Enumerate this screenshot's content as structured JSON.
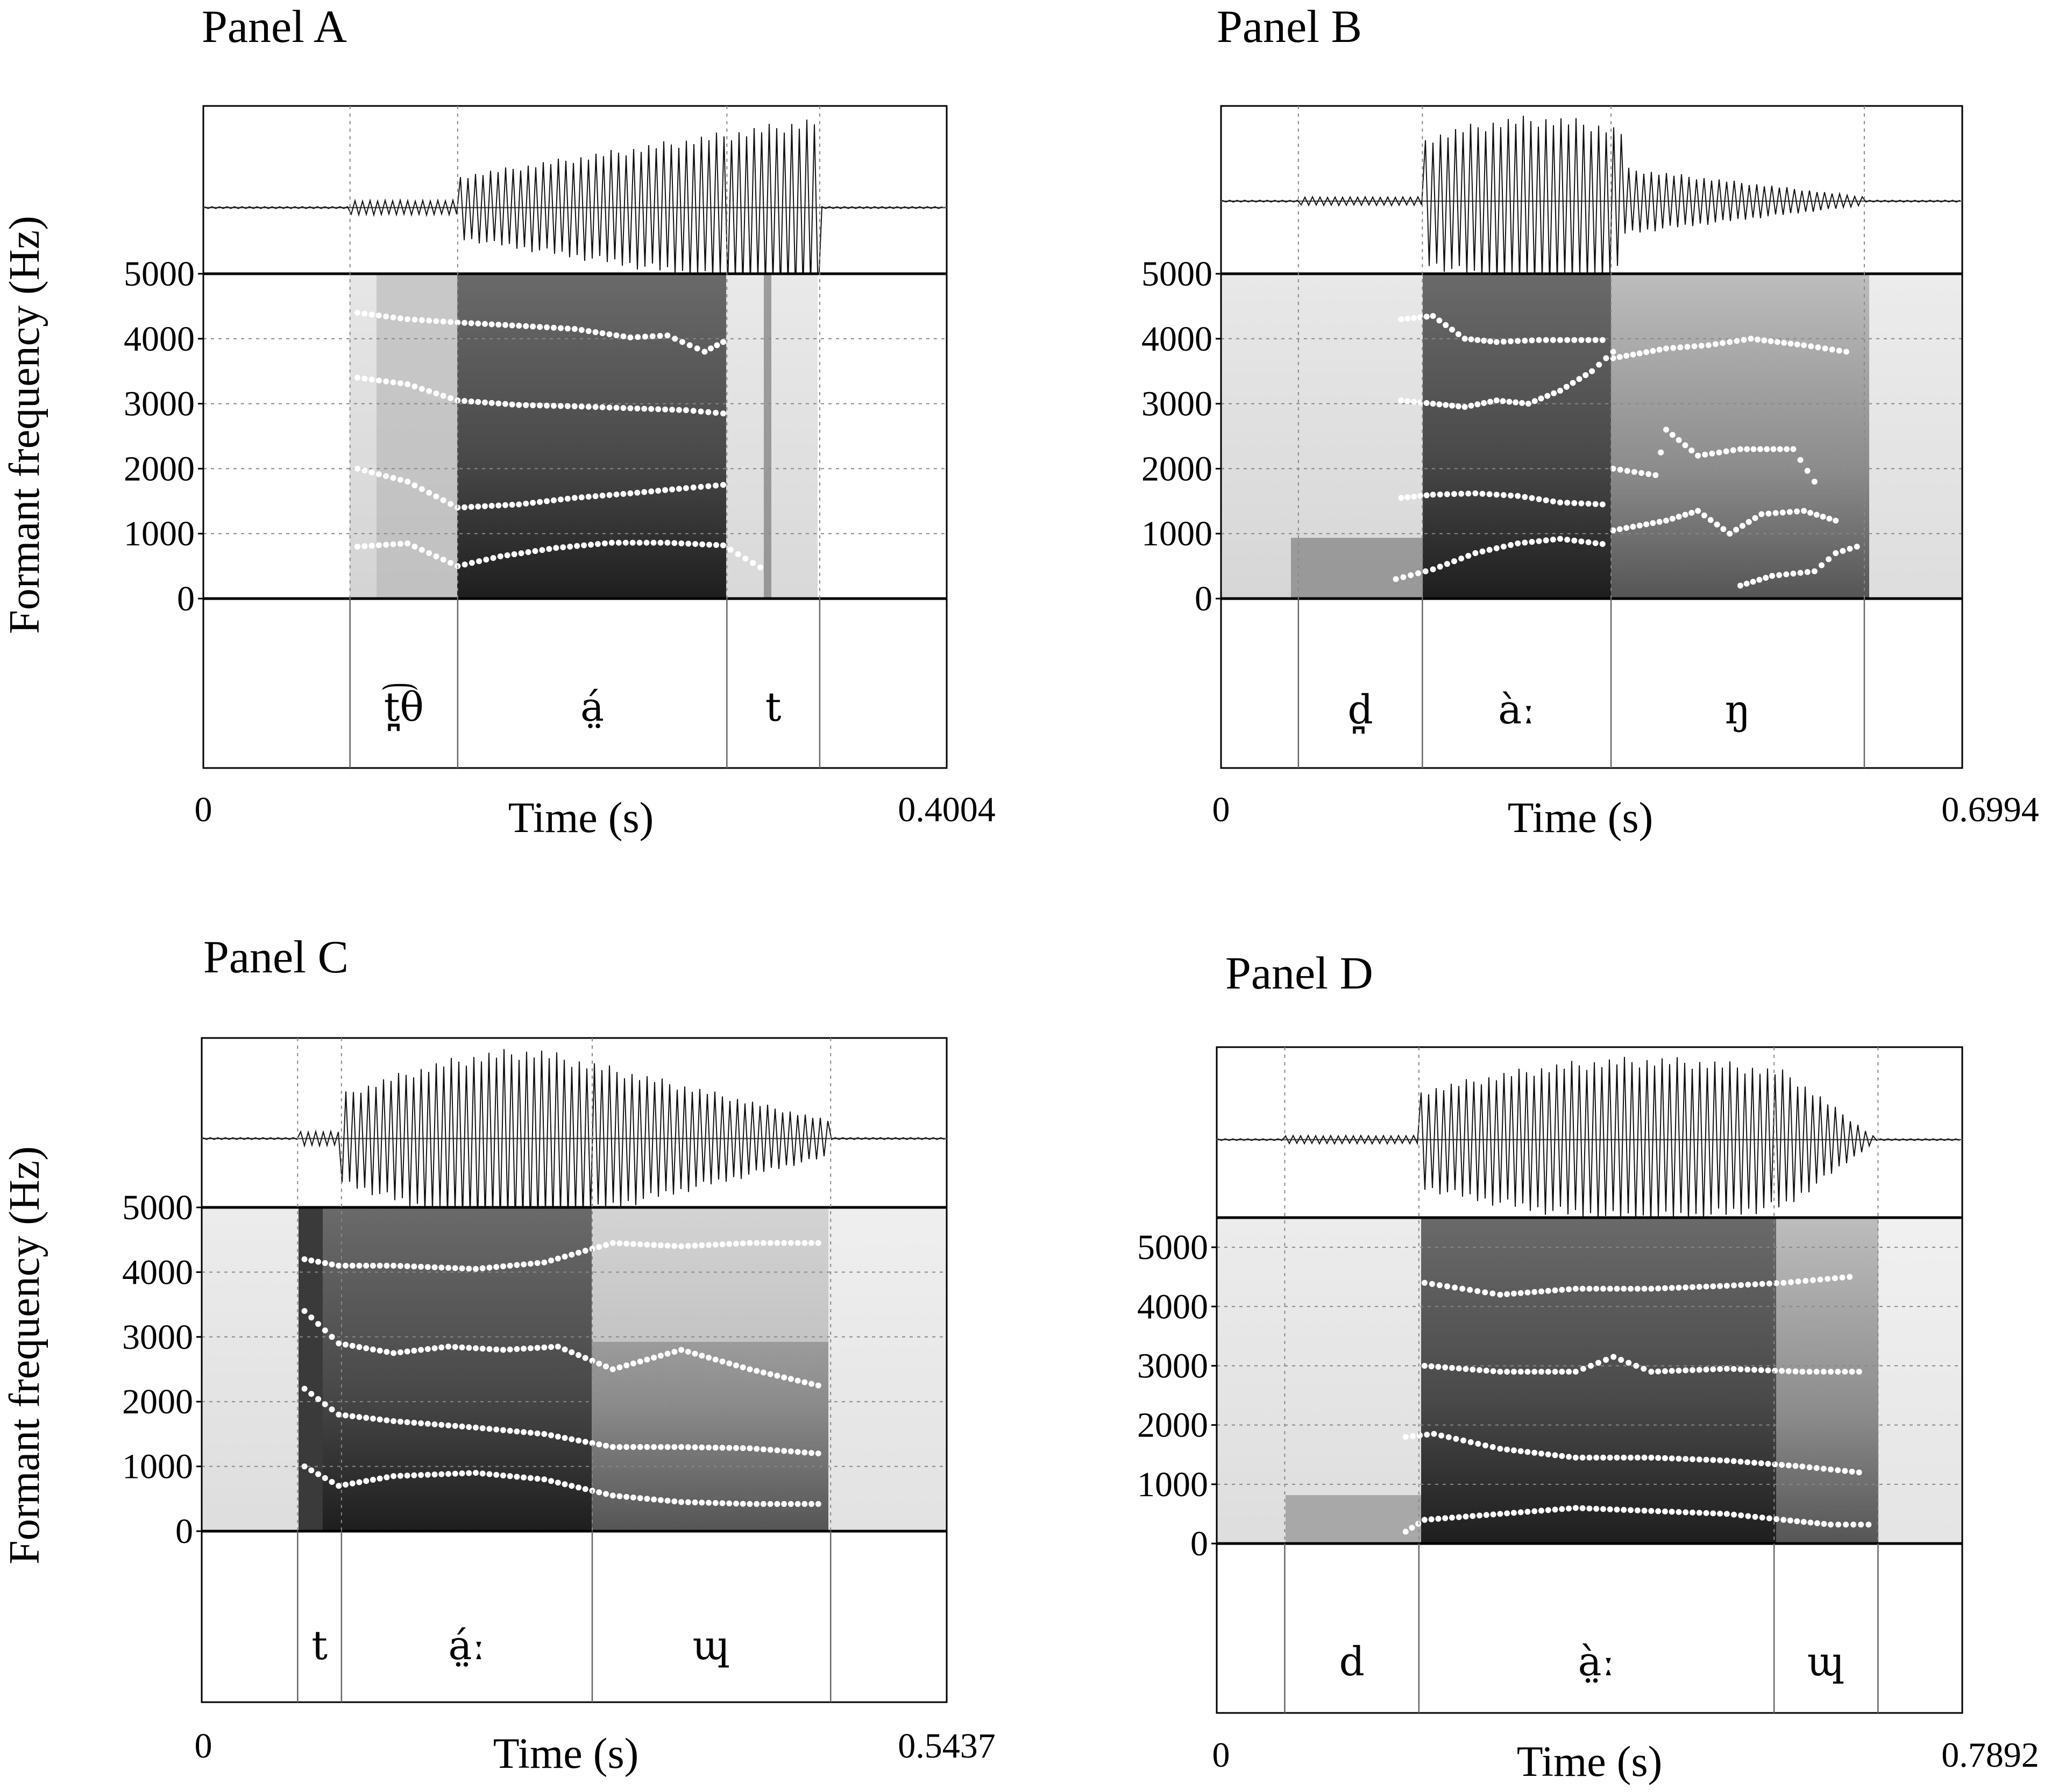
{
  "chart_data": [
    {
      "type": "spectrogram",
      "title": "Panel A",
      "ylabel": "Formant frequency (Hz)",
      "xlabel": "Time (s)",
      "xlim": [
        0,
        0.4004
      ],
      "xlim_labels": [
        "0",
        "0.4004"
      ],
      "ylim": [
        0,
        5000
      ],
      "y_ticks": [
        "0",
        "1000",
        "2000",
        "3000",
        "4000",
        "5000"
      ],
      "segments": [
        {
          "label": "t̪͡θ",
          "start": 0.079,
          "end": 0.137
        },
        {
          "label": "á̤",
          "start": 0.137,
          "end": 0.282
        },
        {
          "label": "t",
          "start": 0.282,
          "end": 0.332
        }
      ],
      "formants": [
        {
          "name": "F1",
          "points": [
            [
              0.083,
              800
            ],
            [
              0.11,
              850
            ],
            [
              0.137,
              500
            ],
            [
              0.16,
              650
            ],
            [
              0.19,
              780
            ],
            [
              0.22,
              860
            ],
            [
              0.25,
              860
            ],
            [
              0.28,
              820
            ],
            [
              0.3,
              480
            ]
          ]
        },
        {
          "name": "F2",
          "points": [
            [
              0.083,
              2000
            ],
            [
              0.11,
              1800
            ],
            [
              0.137,
              1400
            ],
            [
              0.17,
              1450
            ],
            [
              0.2,
              1550
            ],
            [
              0.23,
              1620
            ],
            [
              0.26,
              1700
            ],
            [
              0.28,
              1750
            ]
          ]
        },
        {
          "name": "F3",
          "points": [
            [
              0.083,
              3400
            ],
            [
              0.11,
              3300
            ],
            [
              0.137,
              3050
            ],
            [
              0.17,
              2980
            ],
            [
              0.2,
              2960
            ],
            [
              0.23,
              2930
            ],
            [
              0.26,
              2900
            ],
            [
              0.28,
              2850
            ]
          ]
        },
        {
          "name": "F4",
          "points": [
            [
              0.083,
              4400
            ],
            [
              0.11,
              4300
            ],
            [
              0.137,
              4250
            ],
            [
              0.17,
              4200
            ],
            [
              0.2,
              4150
            ],
            [
              0.23,
              4020
            ],
            [
              0.25,
              4050
            ],
            [
              0.27,
              3800
            ],
            [
              0.28,
              3950
            ]
          ]
        }
      ]
    },
    {
      "type": "spectrogram",
      "title": "Panel B",
      "ylabel": "",
      "xlabel": "Time (s)",
      "xlim": [
        0,
        0.6994
      ],
      "xlim_labels": [
        "0",
        "0.6994"
      ],
      "ylim": [
        0,
        5000
      ],
      "y_ticks": [
        "0",
        "1000",
        "2000",
        "3000",
        "4000",
        "5000"
      ],
      "segments": [
        {
          "label": "d̪",
          "start": 0.073,
          "end": 0.19
        },
        {
          "label": "àː",
          "start": 0.19,
          "end": 0.368
        },
        {
          "label": "ŋ",
          "start": 0.368,
          "end": 0.607
        }
      ],
      "formants": [
        {
          "name": "F1",
          "points": [
            [
              0.165,
              300
            ],
            [
              0.2,
              450
            ],
            [
              0.24,
              700
            ],
            [
              0.28,
              850
            ],
            [
              0.32,
              920
            ],
            [
              0.36,
              840
            ]
          ]
        },
        {
          "name": "F2",
          "points": [
            [
              0.17,
              1550
            ],
            [
              0.2,
              1600
            ],
            [
              0.24,
              1620
            ],
            [
              0.28,
              1580
            ],
            [
              0.32,
              1480
            ],
            [
              0.36,
              1450
            ]
          ]
        },
        {
          "name": "F3",
          "points": [
            [
              0.17,
              3050
            ],
            [
              0.2,
              3000
            ],
            [
              0.23,
              2950
            ],
            [
              0.26,
              3050
            ],
            [
              0.29,
              3000
            ],
            [
              0.32,
              3200
            ],
            [
              0.35,
              3500
            ],
            [
              0.37,
              3800
            ]
          ]
        },
        {
          "name": "F4",
          "points": [
            [
              0.17,
              4300
            ],
            [
              0.2,
              4350
            ],
            [
              0.23,
              4000
            ],
            [
              0.26,
              3950
            ],
            [
              0.3,
              3980
            ],
            [
              0.36,
              3980
            ]
          ]
        },
        {
          "name": "F1-nasal",
          "points": [
            [
              0.49,
              200
            ],
            [
              0.52,
              350
            ],
            [
              0.56,
              420
            ],
            [
              0.58,
              700
            ],
            [
              0.6,
              800
            ]
          ]
        },
        {
          "name": "F2-nasal",
          "points": [
            [
              0.37,
              1050
            ],
            [
              0.42,
              1200
            ],
            [
              0.45,
              1350
            ],
            [
              0.48,
              1000
            ],
            [
              0.51,
              1300
            ],
            [
              0.55,
              1350
            ],
            [
              0.58,
              1200
            ]
          ]
        },
        {
          "name": "F3-nasal",
          "points": [
            [
              0.37,
              2000
            ],
            [
              0.41,
              1900
            ],
            [
              0.42,
              2600
            ],
            [
              0.45,
              2200
            ],
            [
              0.49,
              2300
            ],
            [
              0.54,
              2300
            ],
            [
              0.56,
              1800
            ]
          ]
        },
        {
          "name": "F4-nasal",
          "points": [
            [
              0.37,
              3700
            ],
            [
              0.42,
              3850
            ],
            [
              0.46,
              3900
            ],
            [
              0.5,
              4000
            ],
            [
              0.55,
              3900
            ],
            [
              0.59,
              3800
            ]
          ]
        }
      ]
    },
    {
      "type": "spectrogram",
      "title": "Panel C",
      "ylabel": "Formant frequency (Hz)",
      "xlabel": "Time (s)",
      "xlim": [
        0,
        0.5437
      ],
      "xlim_labels": [
        "0",
        "0.5437"
      ],
      "ylim": [
        0,
        5000
      ],
      "y_ticks": [
        "0",
        "1000",
        "2000",
        "3000",
        "4000",
        "5000"
      ],
      "segments": [
        {
          "label": "t",
          "start": 0.07,
          "end": 0.102
        },
        {
          "label": "á̤ː",
          "start": 0.102,
          "end": 0.285
        },
        {
          "label": "ɰ",
          "start": 0.285,
          "end": 0.459
        }
      ],
      "formants": [
        {
          "name": "F1",
          "points": [
            [
              0.075,
              1000
            ],
            [
              0.1,
              700
            ],
            [
              0.14,
              850
            ],
            [
              0.2,
              900
            ],
            [
              0.25,
              800
            ],
            [
              0.3,
              550
            ],
            [
              0.35,
              450
            ],
            [
              0.4,
              420
            ],
            [
              0.45,
              420
            ]
          ]
        },
        {
          "name": "F2",
          "points": [
            [
              0.075,
              2200
            ],
            [
              0.1,
              1800
            ],
            [
              0.14,
              1700
            ],
            [
              0.2,
              1600
            ],
            [
              0.25,
              1500
            ],
            [
              0.3,
              1300
            ],
            [
              0.35,
              1300
            ],
            [
              0.4,
              1280
            ],
            [
              0.45,
              1200
            ]
          ]
        },
        {
          "name": "F3",
          "points": [
            [
              0.075,
              3400
            ],
            [
              0.1,
              2900
            ],
            [
              0.14,
              2750
            ],
            [
              0.18,
              2850
            ],
            [
              0.22,
              2800
            ],
            [
              0.26,
              2850
            ],
            [
              0.3,
              2500
            ],
            [
              0.35,
              2800
            ],
            [
              0.4,
              2500
            ],
            [
              0.45,
              2250
            ]
          ]
        },
        {
          "name": "F4",
          "points": [
            [
              0.075,
              4200
            ],
            [
              0.1,
              4100
            ],
            [
              0.14,
              4100
            ],
            [
              0.2,
              4050
            ],
            [
              0.25,
              4150
            ],
            [
              0.3,
              4450
            ],
            [
              0.35,
              4400
            ],
            [
              0.4,
              4450
            ],
            [
              0.45,
              4450
            ]
          ]
        }
      ]
    },
    {
      "type": "spectrogram",
      "title": "Panel D",
      "ylabel": "",
      "xlabel": "Time (s)",
      "xlim": [
        0,
        0.7892
      ],
      "xlim_labels": [
        "0",
        "0.7892"
      ],
      "ylim": [
        0,
        5500
      ],
      "y_ticks": [
        "0",
        "1000",
        "2000",
        "3000",
        "4000",
        "5000"
      ],
      "segments": [
        {
          "label": "d",
          "start": 0.072,
          "end": 0.214
        },
        {
          "label": "à̤ː",
          "start": 0.214,
          "end": 0.59
        },
        {
          "label": "ɰ",
          "start": 0.59,
          "end": 0.7
        }
      ],
      "formants": [
        {
          "name": "F1",
          "points": [
            [
              0.2,
              200
            ],
            [
              0.22,
              400
            ],
            [
              0.3,
              500
            ],
            [
              0.38,
              600
            ],
            [
              0.46,
              550
            ],
            [
              0.54,
              500
            ],
            [
              0.6,
              400
            ],
            [
              0.65,
              320
            ],
            [
              0.69,
              320
            ]
          ]
        },
        {
          "name": "F2",
          "points": [
            [
              0.2,
              1800
            ],
            [
              0.23,
              1850
            ],
            [
              0.3,
              1600
            ],
            [
              0.38,
              1450
            ],
            [
              0.46,
              1450
            ],
            [
              0.54,
              1400
            ],
            [
              0.62,
              1300
            ],
            [
              0.68,
              1200
            ]
          ]
        },
        {
          "name": "F3",
          "points": [
            [
              0.22,
              3000
            ],
            [
              0.3,
              2900
            ],
            [
              0.38,
              2900
            ],
            [
              0.42,
              3150
            ],
            [
              0.46,
              2900
            ],
            [
              0.54,
              2950
            ],
            [
              0.62,
              2900
            ],
            [
              0.68,
              2900
            ]
          ]
        },
        {
          "name": "F4",
          "points": [
            [
              0.22,
              4400
            ],
            [
              0.26,
              4300
            ],
            [
              0.3,
              4200
            ],
            [
              0.38,
              4300
            ],
            [
              0.46,
              4300
            ],
            [
              0.54,
              4350
            ],
            [
              0.6,
              4400
            ],
            [
              0.67,
              4500
            ]
          ]
        }
      ]
    }
  ]
}
